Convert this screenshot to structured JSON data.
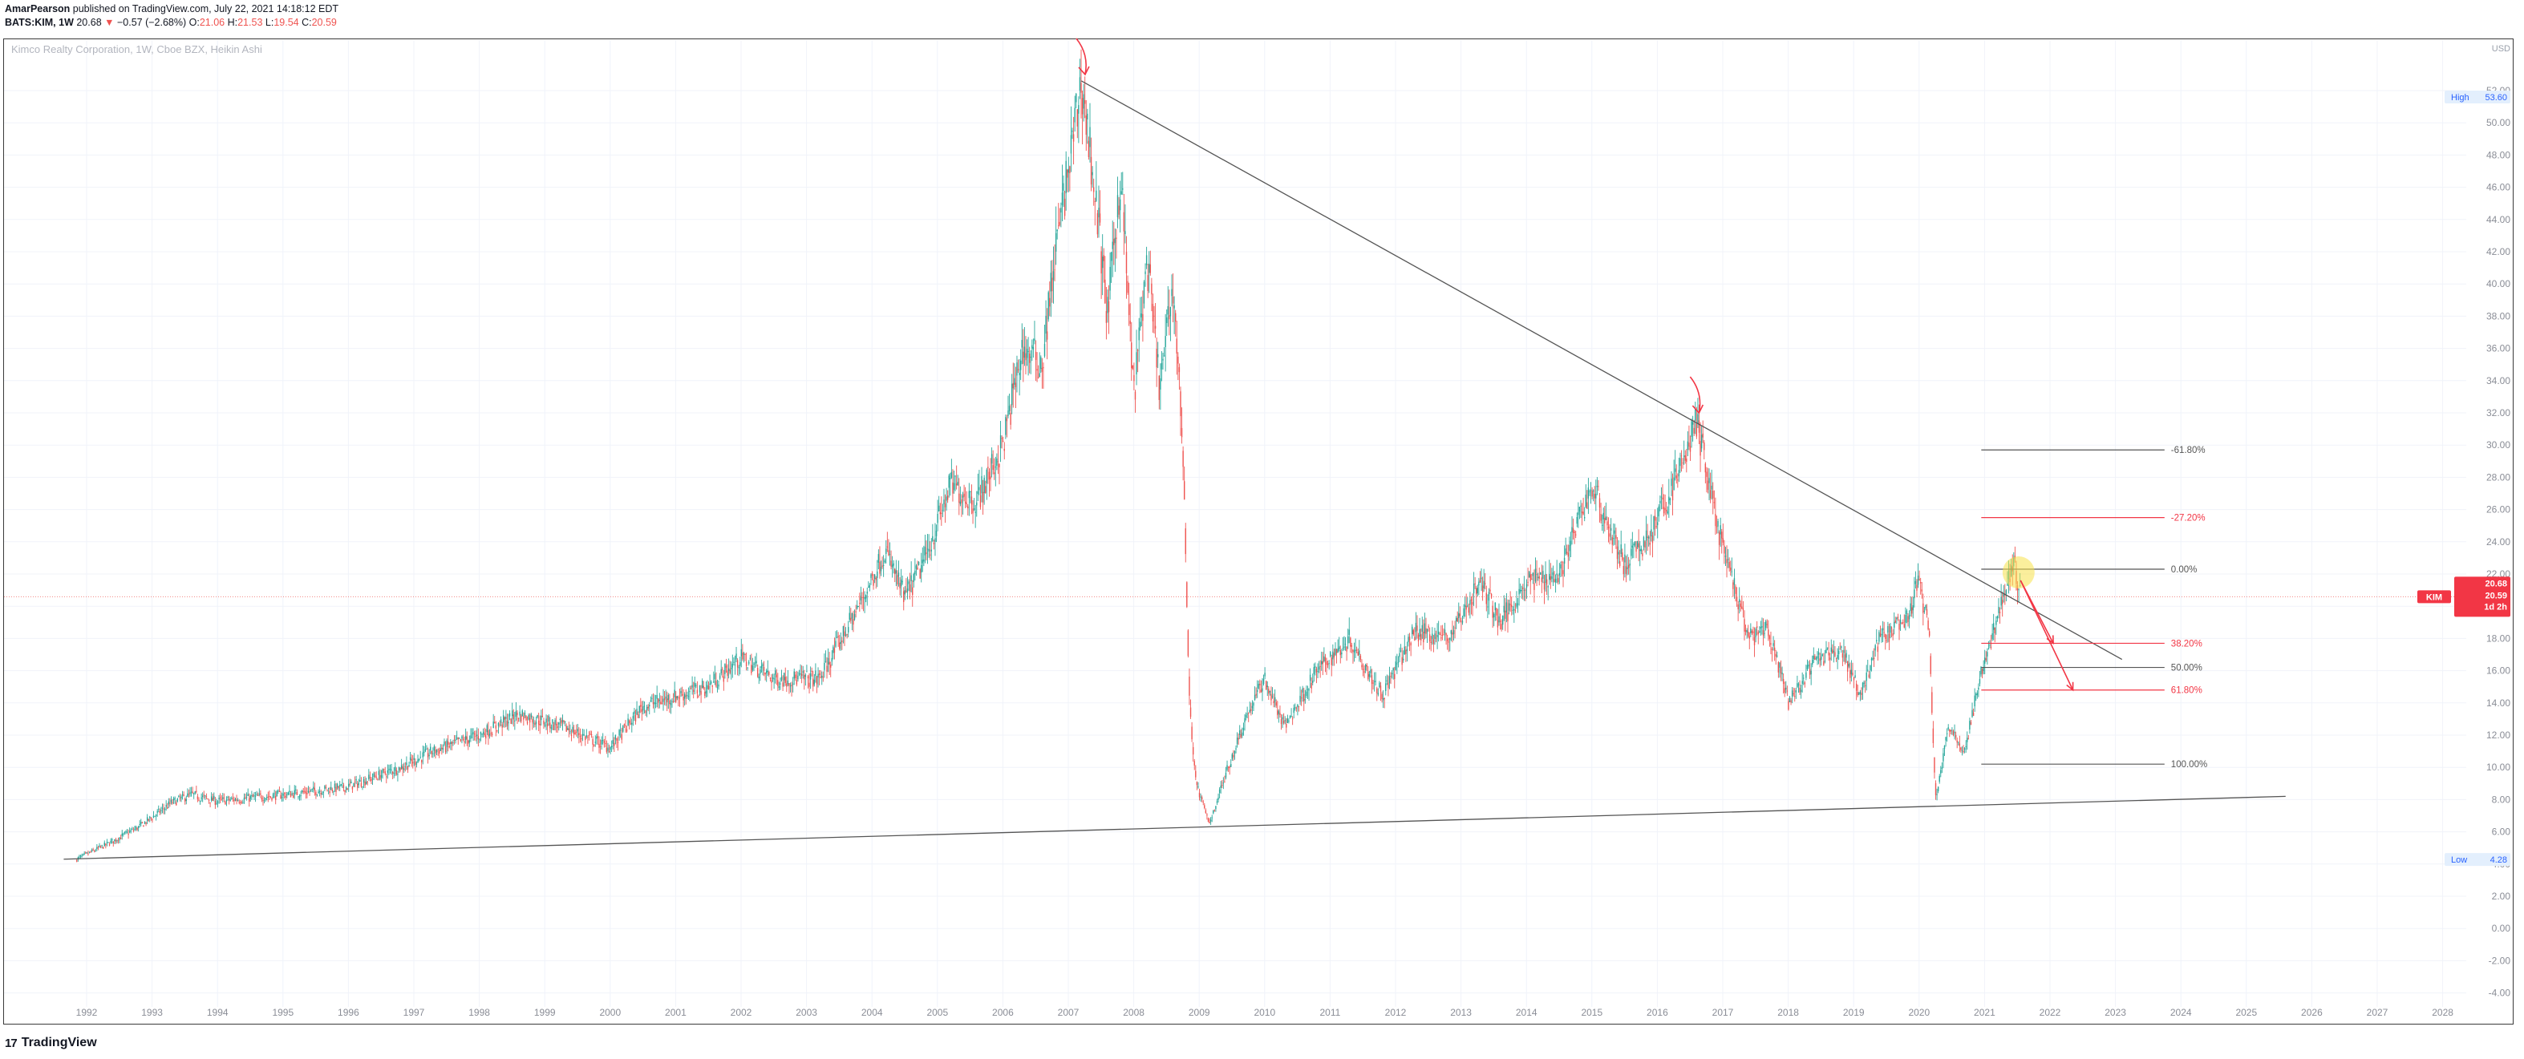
{
  "header": {
    "author": "AmarPearson",
    "published": "published on TradingView.com, July 22, 2021 14:18:12 EDT",
    "symbol_line": "BATS:KIM, 1W",
    "last": "20.68",
    "arrow": "▼",
    "change": "−0.57 (−2.68%)",
    "o_label": "O:",
    "o_val": "21.06",
    "h_label": "H:",
    "h_val": "21.53",
    "l_label": "L:",
    "l_val": "19.54",
    "c_label": "C:",
    "c_val": "20.59"
  },
  "legend": "Kimco Realty Corporation, 1W, Cboe BZX, Heikin Ashi",
  "footer": {
    "brand": "TradingView",
    "logo": "17"
  },
  "colors": {
    "up": "#26a69a",
    "down": "#ef5350",
    "grid": "#f0f3fa",
    "line": "#555555",
    "fib_red": "#f23645",
    "highlight": "#f7e24b"
  },
  "chart_data": {
    "type": "candlestick",
    "title": "Kimco Realty Corporation, 1W, Cboe BZX, Heikin Ashi",
    "currency": "USD",
    "x_ticks": [
      "1992",
      "1993",
      "1994",
      "1995",
      "1996",
      "1997",
      "1998",
      "1999",
      "2000",
      "2001",
      "2002",
      "2003",
      "2004",
      "2005",
      "2006",
      "2007",
      "2008",
      "2009",
      "2010",
      "2011",
      "2012",
      "2013",
      "2014",
      "2015",
      "2016",
      "2017",
      "2018",
      "2019",
      "2020",
      "2021",
      "2022",
      "2023",
      "2024",
      "2025",
      "2026",
      "2027",
      "2028"
    ],
    "y_ticks": [
      "-4.00",
      "-2.00",
      "0.00",
      "2.00",
      "4.00",
      "6.00",
      "8.00",
      "10.00",
      "12.00",
      "14.00",
      "16.00",
      "18.00",
      "20.00",
      "22.00",
      "24.00",
      "26.00",
      "28.00",
      "30.00",
      "32.00",
      "34.00",
      "36.00",
      "38.00",
      "40.00",
      "42.00",
      "44.00",
      "46.00",
      "48.00",
      "50.00",
      "52.00"
    ],
    "ylim": [
      -5,
      54
    ],
    "xlim": [
      1991.2,
      2028.6
    ],
    "grid": true,
    "price_path": [
      [
        1991.85,
        4.3
      ],
      [
        1992.3,
        5.2
      ],
      [
        1992.8,
        6.3
      ],
      [
        1993.3,
        7.8
      ],
      [
        1993.6,
        8.3
      ],
      [
        1994.0,
        7.9
      ],
      [
        1995.0,
        8.3
      ],
      [
        1996.0,
        8.8
      ],
      [
        1996.8,
        10.0
      ],
      [
        1997.3,
        11.0
      ],
      [
        1998.0,
        12.0
      ],
      [
        1998.6,
        13.3
      ],
      [
        1999.3,
        12.5
      ],
      [
        2000.0,
        11.2
      ],
      [
        2000.5,
        13.8
      ],
      [
        2001.5,
        15.0
      ],
      [
        2002.0,
        16.8
      ],
      [
        2002.5,
        15.5
      ],
      [
        2003.2,
        15.5
      ],
      [
        2003.8,
        20.0
      ],
      [
        2004.2,
        23.5
      ],
      [
        2004.5,
        20.5
      ],
      [
        2004.8,
        22.8
      ],
      [
        2005.2,
        27.5
      ],
      [
        2005.6,
        26.5
      ],
      [
        2006.0,
        30.0
      ],
      [
        2006.3,
        36.0
      ],
      [
        2006.6,
        35.0
      ],
      [
        2006.8,
        42.0
      ],
      [
        2007.0,
        47.0
      ],
      [
        2007.2,
        52.6
      ],
      [
        2007.4,
        46.0
      ],
      [
        2007.6,
        38.0
      ],
      [
        2007.8,
        47.0
      ],
      [
        2008.0,
        33.0
      ],
      [
        2008.2,
        41.5
      ],
      [
        2008.4,
        33.5
      ],
      [
        2008.6,
        40.0
      ],
      [
        2008.75,
        30.0
      ],
      [
        2008.85,
        14.0
      ],
      [
        2008.95,
        9.0
      ],
      [
        2009.15,
        6.5
      ],
      [
        2009.4,
        9.5
      ],
      [
        2009.7,
        13.0
      ],
      [
        2010.0,
        15.5
      ],
      [
        2010.3,
        12.5
      ],
      [
        2010.8,
        16.0
      ],
      [
        2011.3,
        18.0
      ],
      [
        2011.8,
        14.5
      ],
      [
        2012.3,
        18.5
      ],
      [
        2012.8,
        18.0
      ],
      [
        2013.3,
        21.5
      ],
      [
        2013.6,
        19.0
      ],
      [
        2014.0,
        21.5
      ],
      [
        2014.5,
        22.0
      ],
      [
        2015.0,
        27.5
      ],
      [
        2015.5,
        22.5
      ],
      [
        2015.9,
        24.5
      ],
      [
        2016.3,
        28.0
      ],
      [
        2016.6,
        31.5
      ],
      [
        2017.0,
        23.5
      ],
      [
        2017.4,
        18.0
      ],
      [
        2017.7,
        18.5
      ],
      [
        2018.0,
        14.0
      ],
      [
        2018.4,
        16.5
      ],
      [
        2018.8,
        17.5
      ],
      [
        2019.1,
        14.5
      ],
      [
        2019.4,
        18.0
      ],
      [
        2019.8,
        19.0
      ],
      [
        2020.0,
        21.5
      ],
      [
        2020.15,
        18.5
      ],
      [
        2020.25,
        8.0
      ],
      [
        2020.45,
        12.5
      ],
      [
        2020.7,
        11.0
      ],
      [
        2020.9,
        15.0
      ],
      [
        2021.2,
        19.5
      ],
      [
        2021.45,
        22.7
      ],
      [
        2021.56,
        20.6
      ]
    ],
    "trendlines": [
      {
        "from": [
          2007.2,
          52.6
        ],
        "to": [
          2023.1,
          16.7
        ]
      },
      {
        "from": [
          1991.65,
          4.3
        ],
        "to": [
          2025.6,
          8.2
        ]
      }
    ],
    "fib_levels": [
      {
        "label": "-61.80%",
        "value": 29.7,
        "color": "#555555"
      },
      {
        "label": "-27.20%",
        "value": 25.5,
        "color": "#f23645"
      },
      {
        "label": "0.00%",
        "value": 22.3,
        "color": "#555555"
      },
      {
        "label": "38.20%",
        "value": 17.7,
        "color": "#f23645"
      },
      {
        "label": "50.00%",
        "value": 16.2,
        "color": "#555555"
      },
      {
        "label": "61.80%",
        "value": 14.8,
        "color": "#f23645"
      },
      {
        "label": "100.00%",
        "value": 10.2,
        "color": "#555555"
      }
    ],
    "fib_x_range": [
      2020.95,
      2023.75
    ],
    "arrows_down": [
      {
        "x": 2007.22,
        "y": 52.6
      },
      {
        "x": 2016.6,
        "y": 31.6
      }
    ],
    "projection_arrows": [
      {
        "from": [
          2021.55,
          21.6
        ],
        "to": [
          2022.05,
          17.7
        ]
      },
      {
        "from": [
          2021.55,
          21.6
        ],
        "to": [
          2022.35,
          14.8
        ]
      }
    ],
    "highlight_circle": {
      "x": 2021.52,
      "y": 22.1
    },
    "current_price_line": 20.59,
    "labels": {
      "high": {
        "text": "High",
        "value": "53.60",
        "y": 51.6
      },
      "low": {
        "text": "Low",
        "value": "4.28",
        "y": 4.28
      },
      "last": {
        "symbol": "KIM",
        "value": "20.68",
        "close": "20.59",
        "countdown": "1d 2h"
      },
      "currency": "USD"
    }
  }
}
